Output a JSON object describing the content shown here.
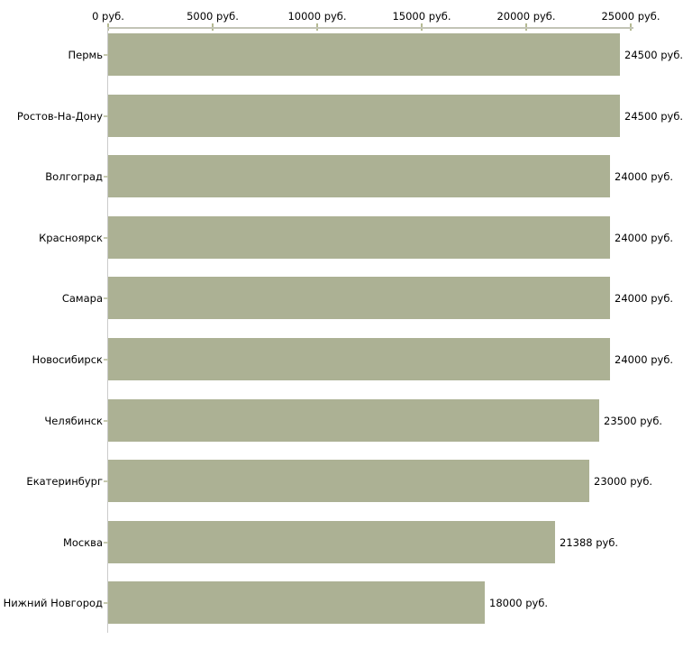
{
  "chart_data": {
    "type": "bar",
    "orientation": "horizontal",
    "title": "",
    "categories": [
      "Пермь",
      "Ростов-На-Дону",
      "Волгоград",
      "Красноярск",
      "Самара",
      "Новосибирск",
      "Челябинск",
      "Екатеринбург",
      "Москва",
      "Нижний Новгород"
    ],
    "values": [
      24500,
      24500,
      24000,
      24000,
      24000,
      24000,
      23500,
      23000,
      21388,
      18000
    ],
    "value_labels": [
      "24500 руб.",
      "24500 руб.",
      "24000 руб.",
      "24000 руб.",
      "24000 руб.",
      "24000 руб.",
      "23500 руб.",
      "23000 руб.",
      "21388 руб.",
      "18000 руб."
    ],
    "unit": "руб.",
    "x_axis": {
      "position": "top",
      "min": 0,
      "max": 25000,
      "tick_values": [
        0,
        5000,
        10000,
        15000,
        20000,
        25000
      ],
      "tick_labels": [
        "0 руб.",
        "5000 руб.",
        "10000 руб.",
        "15000 руб.",
        "20000 руб.",
        "25000 руб."
      ]
    },
    "grid": false,
    "legend": null,
    "colors": {
      "bar": "#acb194",
      "axis_line": "#c2c4b6",
      "axis_tick": "#b5ba93",
      "category_tick": "#c6c9b0",
      "y_axis_line": "#cccccc",
      "text": "#000000",
      "background": "#ffffff"
    }
  }
}
